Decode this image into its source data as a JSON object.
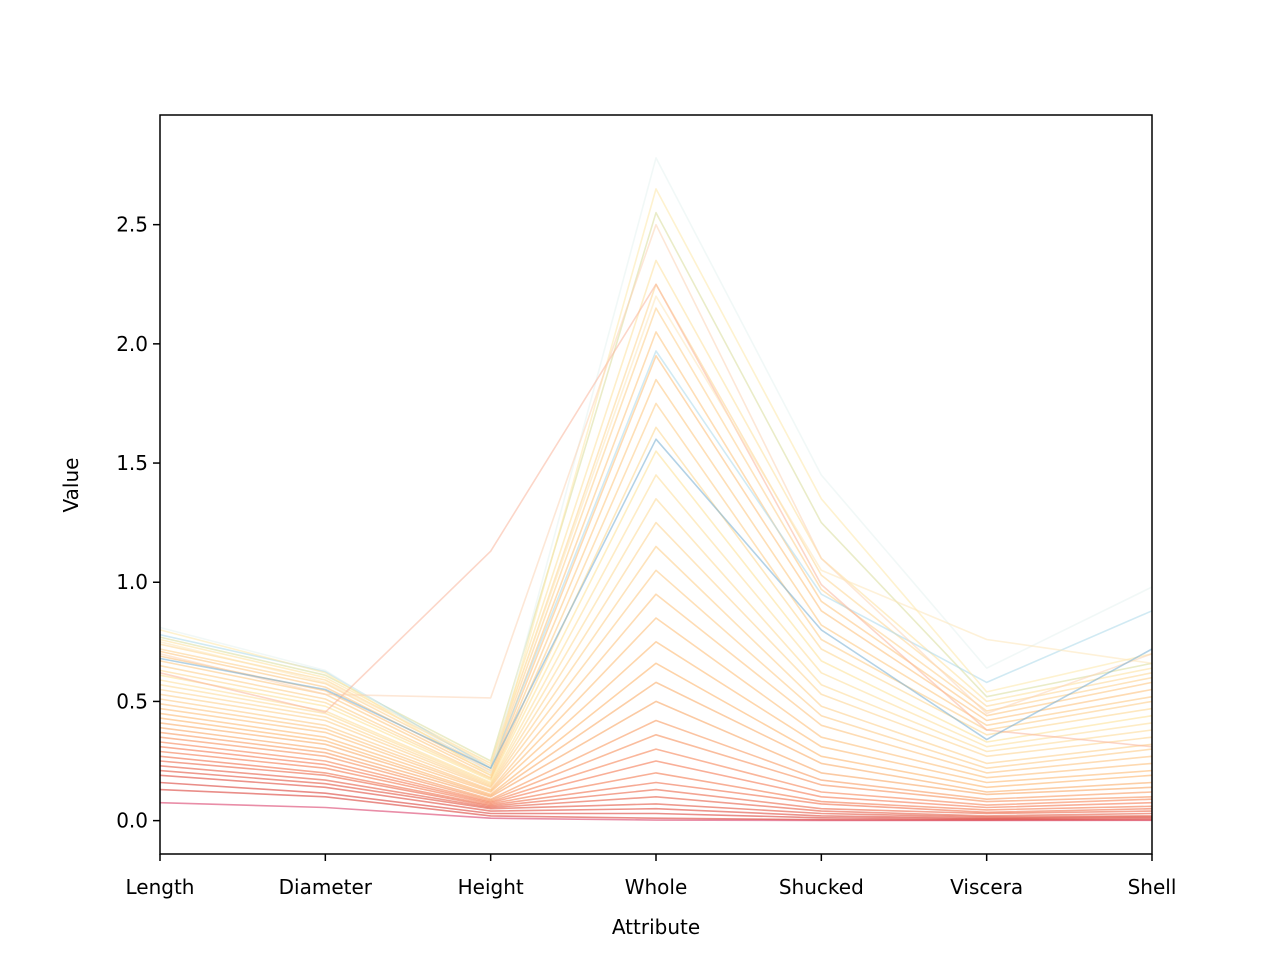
{
  "chart_data": {
    "type": "line",
    "subtype": "parallel-coordinates",
    "title": "",
    "xlabel": "Attribute",
    "ylabel": "Value",
    "categories": [
      "Length",
      "Diameter",
      "Height",
      "Whole",
      "Shucked",
      "Viscera",
      "Shell"
    ],
    "ylim": [
      -0.14,
      2.96
    ],
    "yticks": [
      0.0,
      0.5,
      1.0,
      1.5,
      2.0,
      2.5
    ],
    "ytick_labels": [
      "0.0",
      "0.5",
      "1.0",
      "1.5",
      "2.0",
      "2.5"
    ],
    "grid": false,
    "legend": "none",
    "colormap": [
      "#d73027",
      "#f46d43",
      "#fdae61",
      "#fee090",
      "#e0f3f8",
      "#abd9e9",
      "#74add1"
    ],
    "series": [
      {
        "values": [
          0.075,
          0.055,
          0.01,
          0.002,
          0.001,
          0.0005,
          0.0015
        ],
        "color": "#d7305f"
      },
      {
        "values": [
          0.13,
          0.1,
          0.02,
          0.01,
          0.004,
          0.003,
          0.004
        ],
        "color": "#d73027"
      },
      {
        "values": [
          0.16,
          0.115,
          0.03,
          0.03,
          0.012,
          0.007,
          0.01
        ],
        "color": "#d73027"
      },
      {
        "values": [
          0.19,
          0.14,
          0.04,
          0.05,
          0.02,
          0.01,
          0.015
        ],
        "color": "#dc3b2c"
      },
      {
        "values": [
          0.21,
          0.155,
          0.05,
          0.07,
          0.03,
          0.015,
          0.02
        ],
        "color": "#e04530"
      },
      {
        "values": [
          0.23,
          0.17,
          0.055,
          0.1,
          0.04,
          0.02,
          0.03
        ],
        "color": "#e44f34"
      },
      {
        "values": [
          0.25,
          0.19,
          0.06,
          0.13,
          0.05,
          0.03,
          0.04
        ],
        "color": "#e95938"
      },
      {
        "values": [
          0.27,
          0.2,
          0.065,
          0.16,
          0.07,
          0.035,
          0.05
        ],
        "color": "#ee633c"
      },
      {
        "values": [
          0.29,
          0.22,
          0.07,
          0.2,
          0.08,
          0.045,
          0.06
        ],
        "color": "#f26d40"
      },
      {
        "values": [
          0.31,
          0.235,
          0.075,
          0.25,
          0.1,
          0.055,
          0.075
        ],
        "color": "#f46d43"
      },
      {
        "values": [
          0.33,
          0.25,
          0.08,
          0.3,
          0.12,
          0.065,
          0.09
        ],
        "color": "#f57a49"
      },
      {
        "values": [
          0.35,
          0.27,
          0.085,
          0.36,
          0.15,
          0.08,
          0.1
        ],
        "color": "#f6864e"
      },
      {
        "values": [
          0.37,
          0.285,
          0.09,
          0.42,
          0.17,
          0.09,
          0.12
        ],
        "color": "#f79253"
      },
      {
        "values": [
          0.39,
          0.3,
          0.1,
          0.5,
          0.2,
          0.11,
          0.14
        ],
        "color": "#f89e58"
      },
      {
        "values": [
          0.41,
          0.32,
          0.105,
          0.58,
          0.24,
          0.12,
          0.16
        ],
        "color": "#f9a65c"
      },
      {
        "values": [
          0.43,
          0.335,
          0.11,
          0.66,
          0.27,
          0.14,
          0.19
        ],
        "color": "#fdae61"
      },
      {
        "values": [
          0.45,
          0.35,
          0.12,
          0.75,
          0.31,
          0.16,
          0.21
        ],
        "color": "#fdb468"
      },
      {
        "values": [
          0.47,
          0.37,
          0.125,
          0.85,
          0.35,
          0.18,
          0.24
        ],
        "color": "#fdba6f"
      },
      {
        "values": [
          0.49,
          0.385,
          0.13,
          0.95,
          0.4,
          0.2,
          0.27
        ],
        "color": "#fdc076"
      },
      {
        "values": [
          0.51,
          0.4,
          0.14,
          1.05,
          0.44,
          0.22,
          0.3
        ],
        "color": "#fec67d"
      },
      {
        "values": [
          0.53,
          0.42,
          0.145,
          1.15,
          0.48,
          0.24,
          0.32
        ],
        "color": "#fecc84"
      },
      {
        "values": [
          0.55,
          0.435,
          0.15,
          1.25,
          0.53,
          0.27,
          0.35
        ],
        "color": "#fed28b"
      },
      {
        "values": [
          0.57,
          0.45,
          0.155,
          1.35,
          0.57,
          0.29,
          0.38
        ],
        "color": "#fed892"
      },
      {
        "values": [
          0.59,
          0.46,
          0.16,
          1.45,
          0.62,
          0.31,
          0.41
        ],
        "color": "#fedc96"
      },
      {
        "values": [
          0.61,
          0.48,
          0.17,
          1.55,
          0.67,
          0.33,
          0.44
        ],
        "color": "#fee090"
      },
      {
        "values": [
          0.63,
          0.495,
          0.175,
          1.65,
          0.72,
          0.36,
          0.47
        ],
        "color": "#fdd58a"
      },
      {
        "values": [
          0.65,
          0.51,
          0.18,
          1.75,
          0.76,
          0.38,
          0.5
        ],
        "color": "#fdcb82"
      },
      {
        "values": [
          0.67,
          0.53,
          0.19,
          1.85,
          0.82,
          0.4,
          0.52
        ],
        "color": "#fdc47a"
      },
      {
        "values": [
          0.69,
          0.545,
          0.2,
          1.95,
          0.88,
          0.42,
          0.55
        ],
        "color": "#fdbd74"
      },
      {
        "values": [
          0.71,
          0.56,
          0.21,
          2.05,
          0.92,
          0.44,
          0.58
        ],
        "color": "#fdc27a"
      },
      {
        "values": [
          0.72,
          0.575,
          0.22,
          2.15,
          0.97,
          0.46,
          0.6
        ],
        "color": "#fecd86"
      },
      {
        "values": [
          0.74,
          0.59,
          0.23,
          2.25,
          1.03,
          0.48,
          0.62
        ],
        "color": "#fed690"
      },
      {
        "values": [
          0.76,
          0.6,
          0.24,
          2.35,
          1.1,
          0.5,
          0.64
        ],
        "color": "#fee09a"
      },
      {
        "values": [
          0.77,
          0.61,
          0.25,
          2.55,
          1.25,
          0.52,
          0.66
        ],
        "color": "#d9dc9a"
      },
      {
        "values": [
          0.78,
          0.625,
          0.22,
          1.97,
          0.95,
          0.58,
          0.88
        ],
        "color": "#abd9e9"
      },
      {
        "values": [
          0.8,
          0.62,
          0.19,
          2.65,
          1.35,
          0.54,
          0.7
        ],
        "color": "#fee8a8"
      },
      {
        "values": [
          0.81,
          0.63,
          0.2,
          2.78,
          1.45,
          0.64,
          0.98
        ],
        "color": "#e6f3f0"
      },
      {
        "values": [
          0.62,
          0.455,
          1.13,
          2.25,
          0.99,
          0.38,
          0.31
        ],
        "color": "#f9b59a"
      },
      {
        "values": [
          0.7,
          0.53,
          0.515,
          2.5,
          1.1,
          0.45,
          0.7
        ],
        "color": "#fcd3b5"
      },
      {
        "values": [
          0.75,
          0.58,
          0.24,
          2.2,
          1.05,
          0.76,
          0.66
        ],
        "color": "#fee5b8"
      },
      {
        "values": [
          0.68,
          0.55,
          0.22,
          1.6,
          0.8,
          0.34,
          0.72
        ],
        "color": "#74add1"
      }
    ]
  }
}
